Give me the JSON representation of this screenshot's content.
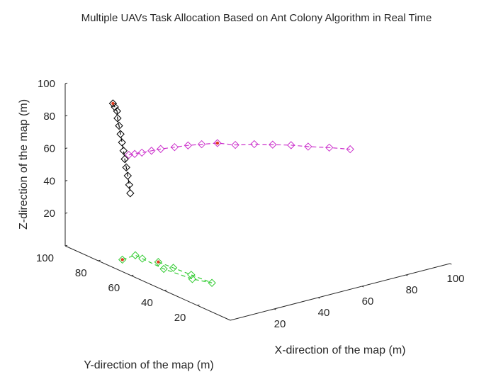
{
  "chart_data": {
    "type": "line3d",
    "title": "Multiple UAVs Task Allocation Based on Ant Colony Algorithm in Real Time",
    "xlabel": "X-direction of the map (m)",
    "ylabel": "Y-direction of the map (m)",
    "zlabel": "Z-direction of the map (m)",
    "xlim": [
      0,
      100
    ],
    "ylim": [
      0,
      100
    ],
    "zlim": [
      0,
      100
    ],
    "xticks": [
      "20",
      "40",
      "60",
      "80",
      "100"
    ],
    "yticks": [
      "20",
      "40",
      "60",
      "80",
      "100"
    ],
    "zticks": [
      "20",
      "40",
      "60",
      "80",
      "100"
    ],
    "grid": false,
    "marker": "diamond",
    "series": [
      {
        "color": "#000000",
        "points": [
          [
            1.3,
            72.8,
            99.8
          ],
          [
            2.1,
            72.7,
            97.4
          ],
          [
            3.1,
            72.7,
            94.5
          ],
          [
            2.8,
            72.0,
            90.5
          ],
          [
            3.1,
            71.5,
            86.0
          ],
          [
            3.4,
            71.0,
            81.0
          ],
          [
            3.7,
            70.5,
            76.0
          ],
          [
            4.0,
            70.0,
            71.0
          ],
          [
            4.2,
            69.5,
            66.0
          ],
          [
            4.5,
            69.0,
            61.0
          ],
          [
            4.8,
            68.5,
            56.0
          ],
          [
            5.1,
            68.0,
            50.5
          ],
          [
            5.2,
            67.5,
            45.5
          ]
        ],
        "highlight": [
          [
            1.3,
            72.8,
            99.8
          ]
        ]
      },
      {
        "color": "#cc33cc",
        "points": [
          [
            8.3,
            72.5,
            65.8
          ],
          [
            10.6,
            72.0,
            65.8
          ],
          [
            13.5,
            71.5,
            65.8
          ],
          [
            17.5,
            71.0,
            65.8
          ],
          [
            21.3,
            70.5,
            65.8
          ],
          [
            26.5,
            69.0,
            65.8
          ],
          [
            31.5,
            67.5,
            65.8
          ],
          [
            36.2,
            65.5,
            65.8
          ],
          [
            41.5,
            63.0,
            65.8
          ],
          [
            45.5,
            57.5,
            65.8
          ],
          [
            51.5,
            54.0,
            65.8
          ],
          [
            56.5,
            49.5,
            65.8
          ],
          [
            61.5,
            45.0,
            65.8
          ],
          [
            65.5,
            40.0,
            65.8
          ],
          [
            71.0,
            34.5,
            65.8
          ],
          [
            76.0,
            28.5,
            65.8
          ]
        ],
        "highlight": [
          [
            41.5,
            63.0,
            65.8
          ]
        ]
      },
      {
        "color": "#33cc33",
        "points": [
          [
            7.7,
            75.6,
            0.0
          ],
          [
            7.5,
            67.5,
            6.5
          ],
          [
            10.1,
            66.7,
            3.9
          ],
          [
            12.7,
            57.2,
            1.0
          ],
          [
            15.5,
            43.6,
            0.0
          ],
          [
            18.7,
            36.0,
            0.0
          ],
          [
            17.9,
            47.5,
            0.0
          ],
          [
            17.2,
            57.4,
            0.0
          ],
          [
            16.6,
            65.7,
            0.0
          ]
        ],
        "highlight": [
          [
            7.7,
            75.6,
            0.0
          ],
          [
            16.6,
            65.7,
            0.0
          ]
        ]
      }
    ]
  }
}
